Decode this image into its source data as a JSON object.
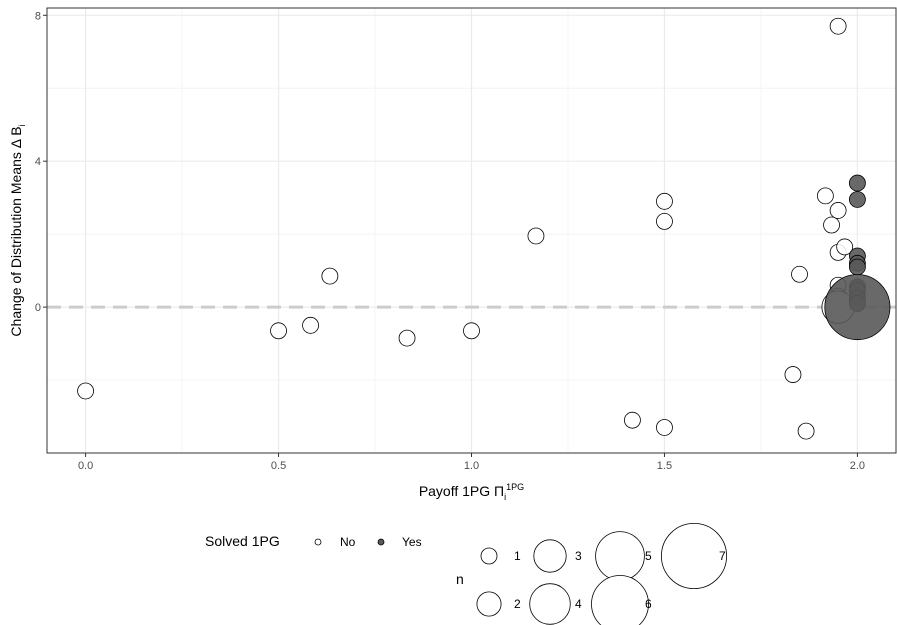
{
  "chart_data": {
    "type": "scatter",
    "xlabel": "Payoff 1PG Π",
    "xlabel_sub": "i",
    "xlabel_sup": "1PG",
    "ylabel": "Change of Distribution Means Δ B",
    "ylabel_sub": "i",
    "xlim": [
      -0.1,
      2.1
    ],
    "ylim": [
      -4,
      8.2
    ],
    "x_ticks": [
      0.0,
      0.5,
      1.0,
      1.5,
      2.0
    ],
    "x_tick_labels": [
      "0.0",
      "0.5",
      "1.0",
      "1.5",
      "2.0"
    ],
    "y_ticks": [
      0,
      4,
      8
    ],
    "y_tick_labels": [
      "0",
      "4",
      "8"
    ],
    "grid": true,
    "reference_line": {
      "y": 0,
      "style": "dashed"
    },
    "legend_position": "bottom",
    "series": [
      {
        "name": "No",
        "points": [
          {
            "x": 0.0,
            "y": -2.3,
            "n": 1
          },
          {
            "x": 0.5,
            "y": -0.65,
            "n": 1
          },
          {
            "x": 0.583,
            "y": -0.5,
            "n": 1
          },
          {
            "x": 0.633,
            "y": 0.85,
            "n": 1
          },
          {
            "x": 0.833,
            "y": -0.85,
            "n": 1
          },
          {
            "x": 1.0,
            "y": -0.65,
            "n": 1
          },
          {
            "x": 1.167,
            "y": 1.95,
            "n": 1
          },
          {
            "x": 1.417,
            "y": -3.1,
            "n": 1
          },
          {
            "x": 1.5,
            "y": 2.9,
            "n": 1
          },
          {
            "x": 1.5,
            "y": 2.35,
            "n": 1
          },
          {
            "x": 1.5,
            "y": -3.3,
            "n": 1
          },
          {
            "x": 1.833,
            "y": -1.85,
            "n": 1
          },
          {
            "x": 1.85,
            "y": 0.9,
            "n": 1
          },
          {
            "x": 1.867,
            "y": -3.4,
            "n": 1
          },
          {
            "x": 1.917,
            "y": 3.05,
            "n": 1
          },
          {
            "x": 1.933,
            "y": 2.25,
            "n": 1
          },
          {
            "x": 1.95,
            "y": 7.7,
            "n": 1
          },
          {
            "x": 1.95,
            "y": 2.65,
            "n": 1
          },
          {
            "x": 1.95,
            "y": 1.5,
            "n": 1
          },
          {
            "x": 1.967,
            "y": 1.65,
            "n": 1
          },
          {
            "x": 1.95,
            "y": 0.6,
            "n": 1
          },
          {
            "x": 1.95,
            "y": 0.3,
            "n": 1
          },
          {
            "x": 1.95,
            "y": 0.05,
            "n": 2
          },
          {
            "x": 1.95,
            "y": 0.0,
            "n": 3
          }
        ]
      },
      {
        "name": "Yes",
        "points": [
          {
            "x": 2.0,
            "y": 3.4,
            "n": 1
          },
          {
            "x": 2.0,
            "y": 2.95,
            "n": 1
          },
          {
            "x": 2.0,
            "y": 1.4,
            "n": 1
          },
          {
            "x": 2.0,
            "y": 1.2,
            "n": 1
          },
          {
            "x": 2.0,
            "y": 1.1,
            "n": 1
          },
          {
            "x": 2.0,
            "y": 0.55,
            "n": 1
          },
          {
            "x": 2.0,
            "y": 0.45,
            "n": 1
          },
          {
            "x": 2.0,
            "y": 0.25,
            "n": 1
          },
          {
            "x": 2.0,
            "y": 0.1,
            "n": 1
          },
          {
            "x": 2.0,
            "y": 0.0,
            "n": 7
          }
        ]
      }
    ],
    "legend": {
      "color_title": "Solved 1PG",
      "color_entries": [
        "No",
        "Yes"
      ],
      "size_title": "n",
      "size_entries": [
        "1",
        "2",
        "3",
        "4",
        "5",
        "6",
        "7"
      ]
    }
  },
  "colors": {
    "panel_border": "#333333",
    "grid_major": "#ebebeb",
    "grid_minor": "#f5f5f5",
    "point_outline": "#000000",
    "no_fill": "#ffffff",
    "yes_fill": "#595959",
    "reference_line": "#cccccc"
  }
}
